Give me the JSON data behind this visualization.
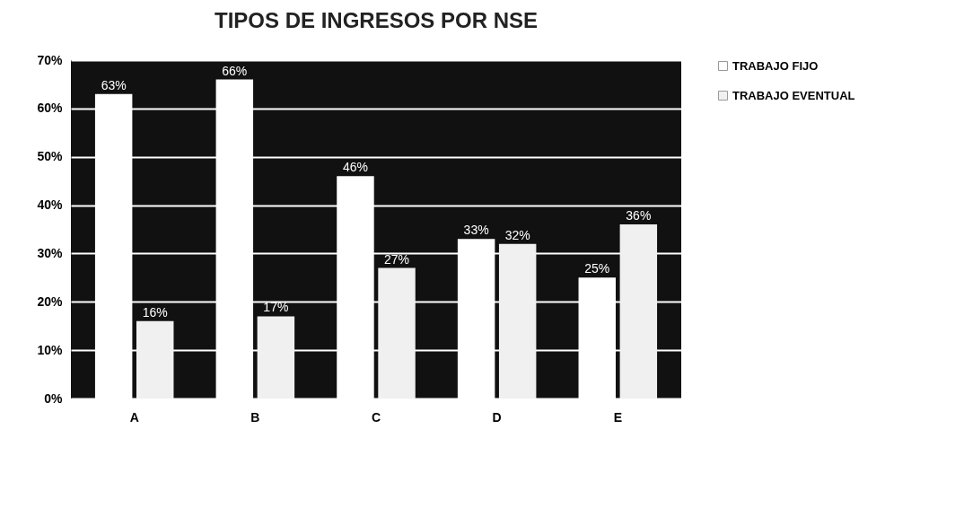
{
  "chart_data": {
    "type": "bar",
    "title": "TIPOS DE INGRESOS POR NSE",
    "categories": [
      "A",
      "B",
      "C",
      "D",
      "E"
    ],
    "series": [
      {
        "name": "TRABAJO FIJO",
        "color": "#ffffff",
        "values": [
          63,
          66,
          46,
          33,
          25
        ],
        "value_labels": [
          "63%",
          "66%",
          "46%",
          "33%",
          "25%"
        ]
      },
      {
        "name": "TRABAJO EVENTUAL",
        "color": "#f0f0f0",
        "values": [
          16,
          17,
          27,
          32,
          36
        ],
        "value_labels": [
          "16%",
          "17%",
          "27%",
          "32%",
          "36%"
        ]
      }
    ],
    "ylim": [
      0,
      70
    ],
    "yticks": [
      {
        "value": 0,
        "label": "0%"
      },
      {
        "value": 10,
        "label": "10%"
      },
      {
        "value": 20,
        "label": "20%"
      },
      {
        "value": 30,
        "label": "30%"
      },
      {
        "value": 40,
        "label": "40%"
      },
      {
        "value": 50,
        "label": "50%"
      },
      {
        "value": 60,
        "label": "60%"
      },
      {
        "value": 70,
        "label": "70%"
      }
    ],
    "grid": "y",
    "legend": "right"
  }
}
